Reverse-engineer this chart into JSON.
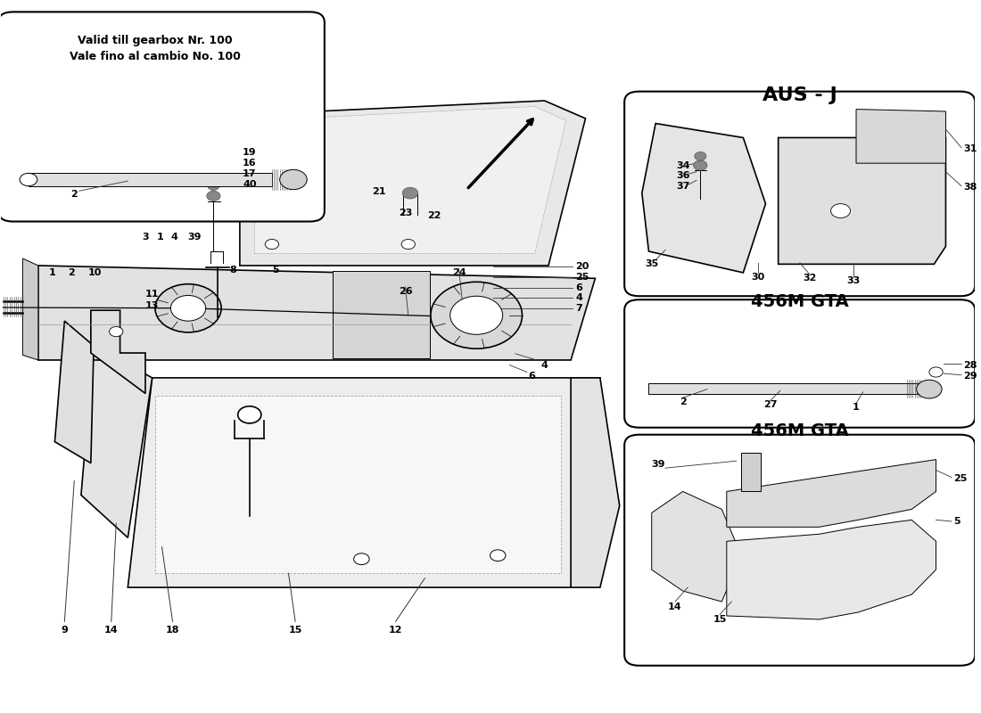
{
  "bg_color": "#ffffff",
  "line_color": "#000000",
  "box1_label": "456M GTA",
  "box2_label": "456M GTA",
  "box3_label": "AUS - J",
  "inset_label1": "Vale fino al cambio No. 100",
  "inset_label2": "Valid till gearbox Nr. 100"
}
